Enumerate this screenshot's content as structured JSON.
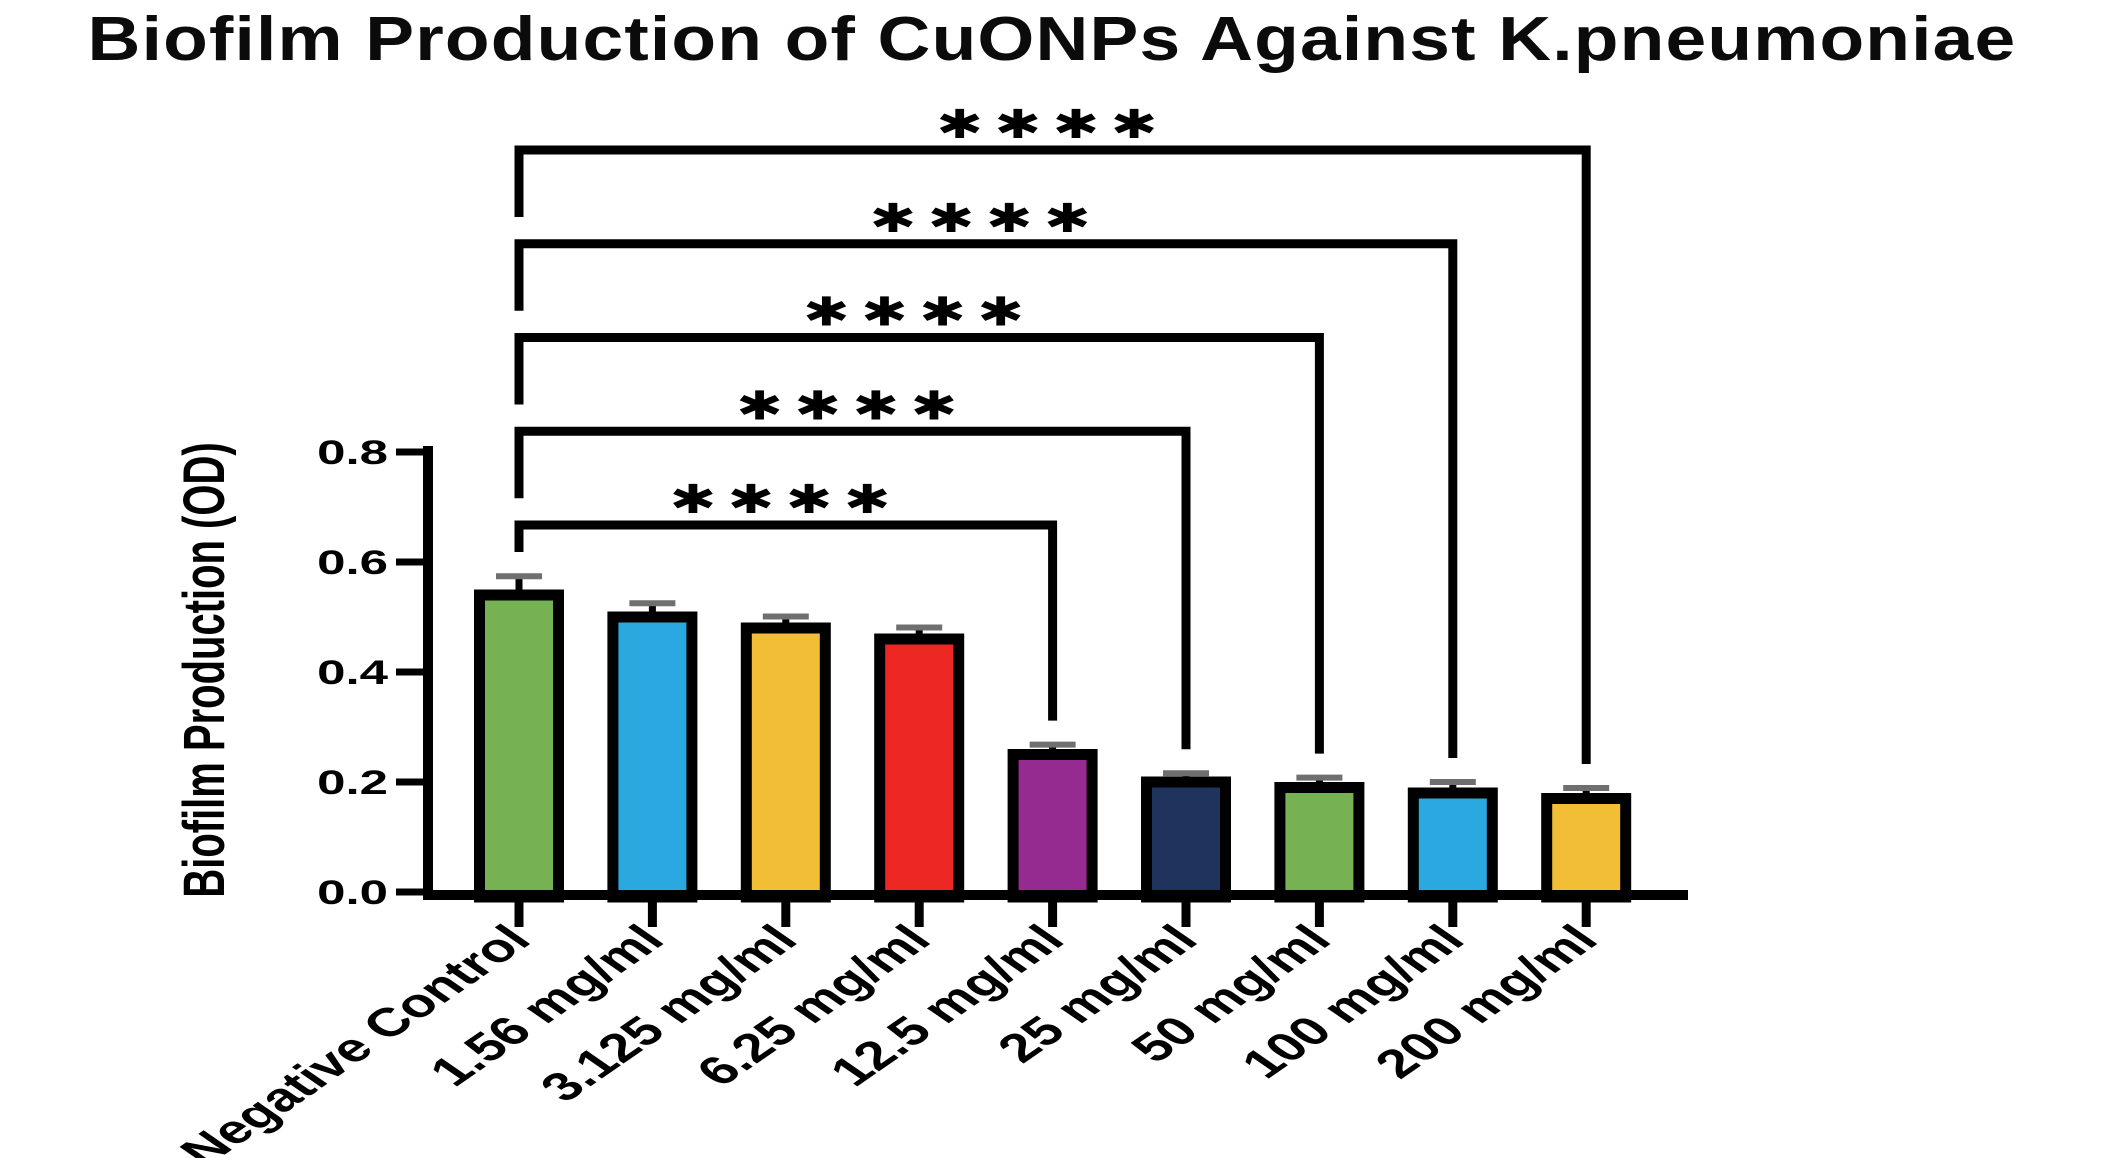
{
  "title": "Biofilm Production of CuONPs Against K.pneumoniae",
  "chart_data": {
    "type": "bar",
    "title": "Biofilm Production of CuONPs Against K.pneumoniae",
    "xlabel": "",
    "ylabel": "Biofilm Production (OD)",
    "ylim": [
      0,
      0.8
    ],
    "yticks": [
      0.0,
      0.2,
      0.4,
      0.6,
      0.8
    ],
    "grid": false,
    "legend": false,
    "categories": [
      "Negative Control",
      "1.56 mg/ml",
      "3.125 mg/ml",
      "6.25 mg/ml",
      "12.5 mg/ml",
      "25 mg/ml",
      "50 mg/ml",
      "100 mg/ml",
      "200 mg/ml"
    ],
    "values": [
      0.55,
      0.51,
      0.49,
      0.47,
      0.26,
      0.21,
      0.2,
      0.19,
      0.18
    ],
    "errors": [
      0.024,
      0.015,
      0.011,
      0.011,
      0.008,
      0.006,
      0.008,
      0.01,
      0.009
    ],
    "bar_colors": [
      "#76B153",
      "#2AA9E0",
      "#F2BE35",
      "#ED2724",
      "#952A90",
      "#1F335C",
      "#76B153",
      "#2AA9E0",
      "#F2BE35"
    ],
    "bar_outline_color": "#000000",
    "axis_color": "#000000",
    "error_cap_color": "#6f6f6f",
    "significance": [
      {
        "from": "Negative Control",
        "to": "200 mg/ml",
        "label": "****"
      },
      {
        "from": "Negative Control",
        "to": "100 mg/ml",
        "label": "****"
      },
      {
        "from": "Negative Control",
        "to": "50 mg/ml",
        "label": "****"
      },
      {
        "from": "Negative Control",
        "to": "25 mg/ml",
        "label": "****"
      },
      {
        "from": "Negative Control",
        "to": "12.5 mg/ml",
        "label": "****"
      }
    ]
  }
}
